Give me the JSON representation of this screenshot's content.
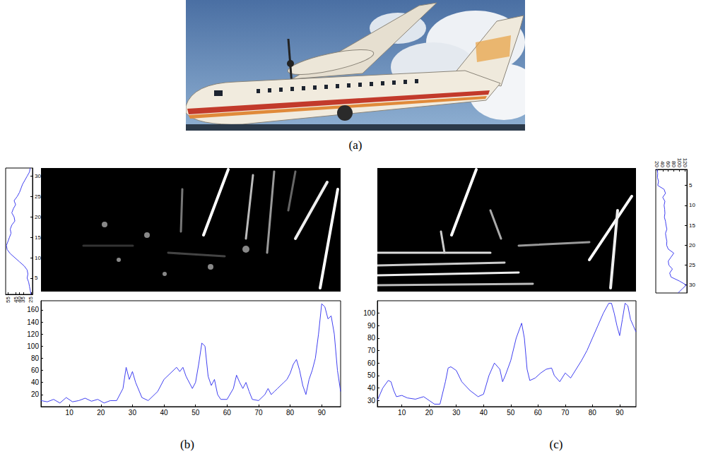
{
  "panel_labels": [
    "(a)",
    "(b)",
    "(c)"
  ],
  "chart_data": [
    {
      "type": "line",
      "color": "#4040f0",
      "x": [
        25,
        26,
        27,
        28,
        30,
        29,
        30,
        34,
        40,
        46,
        52,
        56,
        57,
        55,
        53,
        51,
        52,
        50,
        46,
        47,
        50,
        48,
        45,
        47,
        43,
        40,
        38,
        36,
        33,
        30,
        27,
        26
      ],
      "values": [
        1,
        2,
        3,
        4,
        5,
        6,
        7,
        8,
        9,
        10,
        11,
        12,
        13,
        14,
        15,
        16,
        17,
        18,
        19,
        20,
        21,
        22,
        23,
        24,
        25,
        26,
        27,
        28,
        29,
        30,
        31,
        32
      ],
      "xlim": [
        58,
        23
      ],
      "xticks": [
        25,
        30,
        35,
        40,
        45,
        50,
        55
      ],
      "ylim": [
        1,
        32
      ],
      "yticks": [
        5,
        10,
        15,
        20,
        25,
        30
      ],
      "grid": false
    },
    {
      "type": "line",
      "color": "#4040f0",
      "x": [
        1,
        3,
        5,
        7,
        9,
        11,
        13,
        15,
        17,
        19,
        21,
        23,
        25,
        27,
        28,
        29,
        30,
        31,
        33,
        35,
        38,
        40,
        42,
        44,
        45,
        46,
        47,
        49,
        50,
        51,
        52,
        53,
        54,
        55,
        56,
        57,
        58,
        60,
        62,
        63,
        64,
        65,
        66,
        67,
        68,
        70,
        72,
        73,
        74,
        75,
        76,
        78,
        79,
        80,
        81,
        82,
        83,
        84,
        85,
        86,
        87,
        88,
        89,
        90,
        91,
        92,
        93,
        94,
        95,
        96
      ],
      "values": [
        10,
        8,
        12,
        6,
        15,
        8,
        10,
        14,
        9,
        12,
        6,
        10,
        10,
        30,
        65,
        45,
        58,
        40,
        15,
        10,
        25,
        45,
        55,
        65,
        58,
        65,
        50,
        30,
        40,
        70,
        105,
        100,
        50,
        35,
        45,
        20,
        12,
        12,
        30,
        52,
        40,
        30,
        40,
        25,
        12,
        10,
        20,
        30,
        20,
        25,
        30,
        40,
        45,
        55,
        70,
        78,
        60,
        35,
        20,
        45,
        60,
        80,
        120,
        170,
        165,
        145,
        150,
        120,
        60,
        25
      ],
      "xlim": [
        1,
        96
      ],
      "xticks": [
        10,
        20,
        30,
        40,
        50,
        60,
        70,
        80,
        90
      ],
      "ylim": [
        0,
        175
      ],
      "yticks": [
        20,
        40,
        60,
        80,
        100,
        120,
        140,
        160
      ],
      "grid": false
    },
    {
      "type": "line",
      "color": "#4040f0",
      "x": [
        1,
        3,
        5,
        6,
        7,
        8,
        10,
        12,
        15,
        18,
        20,
        22,
        24,
        26,
        27,
        28,
        30,
        32,
        35,
        38,
        40,
        42,
        44,
        46,
        47,
        48,
        50,
        52,
        54,
        55,
        56,
        57,
        59,
        61,
        63,
        65,
        66,
        68,
        70,
        72,
        74,
        76,
        78,
        80,
        82,
        84,
        86,
        87,
        88,
        89,
        90,
        91,
        92,
        93,
        94,
        95,
        96
      ],
      "values": [
        30,
        40,
        46,
        45,
        38,
        33,
        34,
        32,
        31,
        33,
        30,
        27,
        27,
        45,
        56,
        57,
        54,
        45,
        38,
        33,
        35,
        50,
        60,
        55,
        45,
        50,
        62,
        80,
        92,
        80,
        55,
        46,
        48,
        52,
        55,
        56,
        50,
        45,
        52,
        48,
        55,
        62,
        70,
        80,
        90,
        100,
        108,
        108,
        100,
        90,
        82,
        95,
        108,
        106,
        95,
        90,
        85
      ],
      "xlim": [
        1,
        96
      ],
      "xticks": [
        10,
        20,
        30,
        40,
        50,
        60,
        70,
        80,
        90
      ],
      "ylim": [
        25,
        110
      ],
      "yticks": [
        30,
        40,
        50,
        60,
        70,
        80,
        90,
        100
      ],
      "grid": false
    },
    {
      "type": "line",
      "color": "#4040f0",
      "x": [
        20,
        22,
        21,
        25,
        22,
        45,
        50,
        40,
        48,
        45,
        47,
        48,
        46,
        50,
        52,
        55,
        50,
        52,
        55,
        54,
        60,
        80,
        70,
        60,
        62,
        75,
        65,
        70,
        100,
        125,
        110,
        95
      ],
      "values": [
        1,
        2,
        3,
        4,
        5,
        6,
        7,
        8,
        9,
        10,
        11,
        12,
        13,
        14,
        15,
        16,
        17,
        18,
        19,
        20,
        21,
        22,
        23,
        24,
        25,
        26,
        27,
        28,
        29,
        30,
        31,
        32
      ],
      "xlim": [
        15,
        127
      ],
      "xticks": [
        20,
        40,
        60,
        80,
        100,
        120
      ],
      "ylim": [
        32,
        1
      ],
      "yticks": [
        5,
        10,
        15,
        20,
        25,
        30
      ],
      "grid": false
    }
  ]
}
